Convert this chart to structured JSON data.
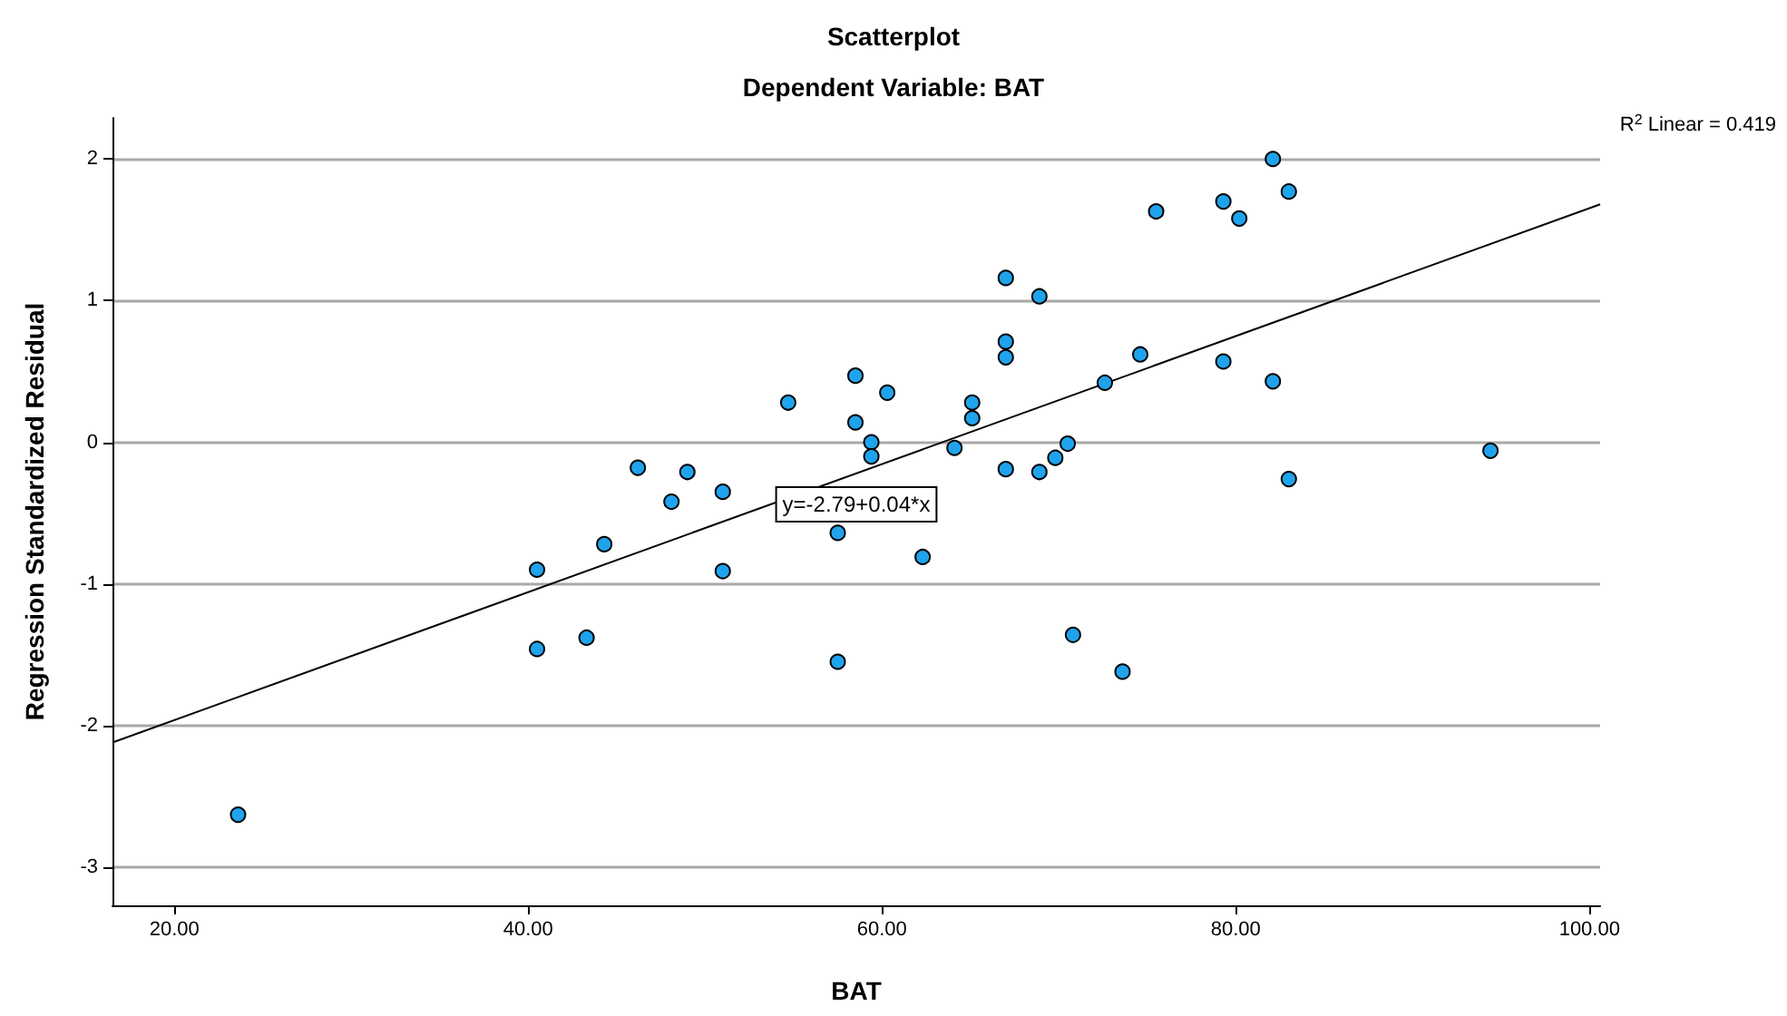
{
  "chart_data": {
    "type": "scatter",
    "title": "Scatterplot",
    "subtitle": "Dependent Variable: BAT",
    "xlabel": "BAT",
    "ylabel": "Regression Standardized Residual",
    "xlim": [
      16.5,
      100.6
    ],
    "xticks": [
      {
        "value": 20,
        "label": "20.00"
      },
      {
        "value": 40,
        "label": "40.00"
      },
      {
        "value": 60,
        "label": "60.00"
      },
      {
        "value": 80,
        "label": "80.00"
      },
      {
        "value": 100,
        "label": "100.00"
      }
    ],
    "ylim": [
      -3.27,
      2.29
    ],
    "yticks": [
      -3,
      -2,
      -1,
      0,
      1,
      2
    ],
    "grid": "y",
    "marker": "circle",
    "series": [
      {
        "color": "#1fa3ec",
        "x": [
          23.6,
          40.5,
          40.5,
          43.3,
          44.3,
          46.2,
          48.1,
          49.0,
          51.0,
          51.0,
          54.7,
          57.5,
          57.5,
          58.5,
          58.5,
          59.4,
          59.4,
          60.3,
          62.3,
          64.1,
          65.1,
          65.1,
          67.0,
          67.0,
          67.0,
          67.0,
          68.9,
          68.9,
          69.8,
          70.5,
          70.8,
          72.6,
          73.6,
          74.6,
          75.5,
          79.3,
          79.3,
          80.2,
          82.1,
          82.1,
          83.0,
          83.0,
          94.4
        ],
        "values": [
          -2.63,
          -0.9,
          -1.46,
          -1.38,
          -0.72,
          -0.18,
          -0.42,
          -0.21,
          -0.35,
          -0.91,
          0.28,
          -0.64,
          -1.55,
          0.47,
          0.14,
          0.0,
          -0.1,
          0.35,
          -0.81,
          -0.04,
          0.28,
          0.17,
          1.16,
          0.71,
          0.6,
          -0.19,
          1.03,
          -0.21,
          -0.11,
          -0.01,
          -1.36,
          0.42,
          -1.62,
          0.62,
          1.63,
          1.7,
          0.57,
          1.58,
          2.0,
          0.43,
          1.77,
          -0.26,
          -0.06
        ]
      },
      {
        "type": "line",
        "marker": "none",
        "color": "#000000",
        "x": [
          16.5,
          100.6
        ],
        "values": [
          -2.12,
          1.68
        ]
      }
    ],
    "annotations": [
      "y=-2.79+0.04*x",
      "R$^{2}$ Linear = 0.419"
    ]
  }
}
